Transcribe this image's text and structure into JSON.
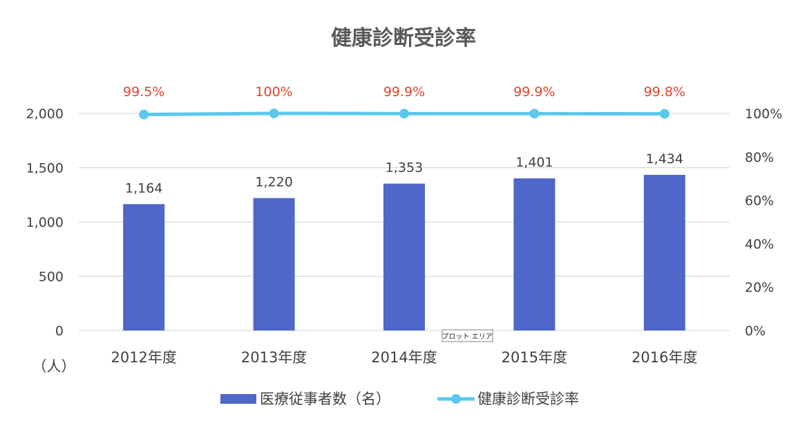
{
  "chart_data": {
    "type": "bar",
    "title": "健康診断受診率",
    "categories": [
      "2012年度",
      "2013年度",
      "2014年度",
      "2015年度",
      "2016年度"
    ],
    "ylim": [
      0,
      2000
    ],
    "y2lim": [
      0,
      1.0
    ],
    "yticks": [
      "0",
      "500",
      "1,000",
      "1,500",
      "2,000"
    ],
    "y2ticks": [
      "0%",
      "20%",
      "40%",
      "60%",
      "80%",
      "100%"
    ],
    "ylabel": "（人）",
    "grid": true,
    "legend_position": "bottom",
    "series": [
      {
        "name": "医療従事者数（名）",
        "type": "bar",
        "axis": "left",
        "values": [
          1164,
          1220,
          1353,
          1401,
          1434
        ],
        "labels": [
          "1,164",
          "1,220",
          "1,353",
          "1,401",
          "1,434"
        ],
        "color": "#4E67C8"
      },
      {
        "name": "健康診断受診率",
        "type": "line",
        "axis": "right",
        "values": [
          0.995,
          1.0,
          0.999,
          0.999,
          0.998
        ],
        "labels": [
          "99.5%",
          "100%",
          "99.9%",
          "99.9%",
          "99.8%"
        ],
        "color": "#5BC8EE",
        "label_color": "#E0442C"
      }
    ],
    "tooltip": "プロット エリア"
  }
}
